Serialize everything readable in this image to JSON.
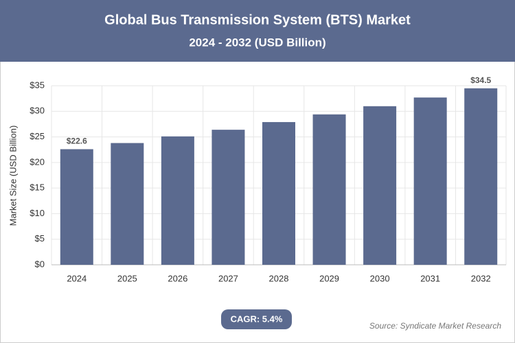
{
  "chart_data": {
    "type": "bar",
    "title": "Global Bus Transmission System (BTS) Market",
    "subtitle": "2024 - 2032 (USD Billion)",
    "y_label": "Market Size (USD Billion)",
    "categories": [
      "2024",
      "2025",
      "2026",
      "2027",
      "2028",
      "2029",
      "2030",
      "2031",
      "2032"
    ],
    "values": [
      22.6,
      23.8,
      25.1,
      26.4,
      27.9,
      29.4,
      31.0,
      32.7,
      34.5
    ],
    "value_labels": [
      "$22.6",
      null,
      null,
      null,
      null,
      null,
      null,
      null,
      "$34.5"
    ],
    "color": "#5b6a8f",
    "ylim": [
      0,
      35
    ],
    "yticks": [
      {
        "value": 0,
        "label": "$0"
      },
      {
        "value": 5,
        "label": "$5"
      },
      {
        "value": 10,
        "label": "$10"
      },
      {
        "value": 15,
        "label": "$15"
      },
      {
        "value": 20,
        "label": "$20"
      },
      {
        "value": 25,
        "label": "$25"
      },
      {
        "value": 30,
        "label": "$30"
      },
      {
        "value": 35,
        "label": "$35"
      }
    ],
    "grid": true,
    "cagr": "CAGR: 5.4%",
    "source": "Source: Syndicate Market Research"
  }
}
